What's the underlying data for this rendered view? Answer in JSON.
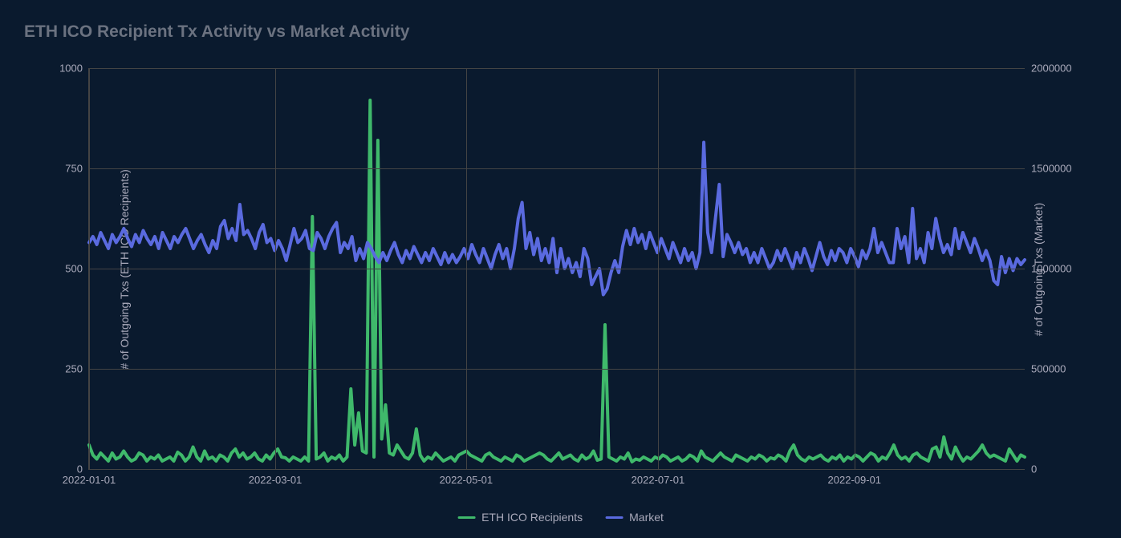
{
  "chart": {
    "type": "line-dual-axis",
    "title": "ETH ICO Recipient Tx Activity vs Market Activity",
    "title_color": "#6b7280",
    "title_fontsize": 21,
    "background_color": "#0a1a2e",
    "grid_color": "#444444",
    "axis_text_color": "#aabbcc",
    "yaxis_left": {
      "label": "# of Outgoing Txs (ETH ICO Recipients)",
      "min": 0,
      "max": 1000,
      "ticks": [
        0,
        250,
        500,
        750,
        1000
      ]
    },
    "yaxis_right": {
      "label": "# of Outgoing Txs (Market)",
      "min": 0,
      "max": 2000000,
      "ticks": [
        0,
        500000,
        1000000,
        1500000,
        2000000
      ]
    },
    "xaxis": {
      "ticks": [
        "2022-01-01",
        "2022-03-01",
        "2022-05-01",
        "2022-07-01",
        "2022-09-01"
      ],
      "tick_positions_pct": [
        0,
        19.9,
        40.3,
        60.8,
        81.8
      ]
    },
    "series": [
      {
        "name": "ETH ICO Recipients",
        "color": "#3fb96b",
        "axis": "left",
        "line_width": 2,
        "values": [
          60,
          35,
          25,
          40,
          30,
          20,
          40,
          25,
          30,
          45,
          30,
          20,
          25,
          40,
          35,
          20,
          30,
          25,
          35,
          20,
          25,
          30,
          20,
          42,
          35,
          20,
          30,
          55,
          30,
          20,
          45,
          25,
          30,
          20,
          35,
          30,
          20,
          40,
          50,
          30,
          40,
          25,
          30,
          40,
          25,
          20,
          35,
          25,
          40,
          50,
          30,
          28,
          20,
          30,
          25,
          20,
          30,
          20,
          630,
          25,
          30,
          40,
          20,
          30,
          25,
          35,
          20,
          30,
          200,
          60,
          140,
          45,
          40,
          920,
          30,
          820,
          75,
          160,
          40,
          35,
          60,
          45,
          30,
          25,
          40,
          100,
          35,
          20,
          30,
          25,
          40,
          30,
          20,
          25,
          30,
          20,
          35,
          40,
          45,
          35,
          30,
          25,
          20,
          35,
          40,
          30,
          25,
          20,
          30,
          25,
          20,
          35,
          30,
          20,
          25,
          30,
          35,
          40,
          35,
          25,
          20,
          30,
          40,
          25,
          30,
          35,
          25,
          20,
          35,
          25,
          30,
          45,
          22,
          25,
          360,
          30,
          25,
          20,
          30,
          25,
          40,
          18,
          25,
          22,
          30,
          25,
          20,
          30,
          25,
          35,
          30,
          20,
          25,
          30,
          20,
          25,
          35,
          30,
          20,
          45,
          30,
          25,
          20,
          30,
          40,
          30,
          25,
          20,
          35,
          30,
          25,
          20,
          30,
          25,
          35,
          30,
          20,
          28,
          25,
          35,
          30,
          20,
          45,
          60,
          35,
          25,
          20,
          30,
          25,
          30,
          35,
          25,
          20,
          30,
          25,
          35,
          20,
          30,
          25,
          35,
          30,
          20,
          30,
          40,
          35,
          20,
          30,
          25,
          40,
          60,
          35,
          25,
          30,
          20,
          35,
          40,
          30,
          25,
          20,
          50,
          55,
          30,
          80,
          40,
          25,
          55,
          35,
          20,
          30,
          25,
          35,
          45,
          60,
          40,
          30,
          35,
          30,
          25,
          20,
          50,
          35,
          20,
          35,
          30
        ]
      },
      {
        "name": "Market",
        "color": "#5a6adf",
        "axis": "right",
        "line_width": 2,
        "values": [
          1130000,
          1160000,
          1120000,
          1180000,
          1140000,
          1100000,
          1170000,
          1130000,
          1160000,
          1200000,
          1150000,
          1110000,
          1170000,
          1130000,
          1190000,
          1150000,
          1120000,
          1160000,
          1100000,
          1180000,
          1140000,
          1100000,
          1160000,
          1130000,
          1170000,
          1200000,
          1150000,
          1100000,
          1140000,
          1170000,
          1120000,
          1080000,
          1140000,
          1100000,
          1210000,
          1240000,
          1150000,
          1200000,
          1140000,
          1320000,
          1170000,
          1190000,
          1150000,
          1100000,
          1180000,
          1220000,
          1130000,
          1150000,
          1090000,
          1140000,
          1100000,
          1040000,
          1120000,
          1200000,
          1130000,
          1150000,
          1190000,
          1100000,
          1090000,
          1180000,
          1150000,
          1100000,
          1160000,
          1200000,
          1230000,
          1080000,
          1130000,
          1100000,
          1160000,
          1040000,
          1100000,
          1050000,
          1130000,
          1100000,
          1060000,
          1030000,
          1080000,
          1040000,
          1090000,
          1130000,
          1070000,
          1030000,
          1090000,
          1050000,
          1110000,
          1070000,
          1030000,
          1080000,
          1040000,
          1100000,
          1060000,
          1020000,
          1080000,
          1030000,
          1070000,
          1030000,
          1060000,
          1100000,
          1050000,
          1120000,
          1070000,
          1030000,
          1100000,
          1050000,
          1000000,
          1070000,
          1120000,
          1050000,
          1100000,
          1000000,
          1100000,
          1250000,
          1330000,
          1100000,
          1180000,
          1070000,
          1150000,
          1040000,
          1100000,
          1030000,
          1150000,
          980000,
          1100000,
          1000000,
          1050000,
          980000,
          1030000,
          960000,
          1100000,
          1050000,
          920000,
          960000,
          1000000,
          870000,
          900000,
          980000,
          1040000,
          980000,
          1110000,
          1190000,
          1120000,
          1200000,
          1130000,
          1170000,
          1100000,
          1180000,
          1130000,
          1080000,
          1150000,
          1100000,
          1050000,
          1130000,
          1080000,
          1030000,
          1100000,
          1040000,
          1080000,
          1000000,
          1080000,
          1630000,
          1180000,
          1080000,
          1250000,
          1420000,
          1060000,
          1170000,
          1130000,
          1080000,
          1130000,
          1070000,
          1100000,
          1030000,
          1080000,
          1030000,
          1100000,
          1050000,
          1000000,
          1030000,
          1090000,
          1040000,
          1100000,
          1050000,
          1000000,
          1080000,
          1030000,
          1100000,
          1050000,
          990000,
          1060000,
          1130000,
          1060000,
          1020000,
          1090000,
          1040000,
          1100000,
          1080000,
          1030000,
          1100000,
          1060000,
          1010000,
          1090000,
          1050000,
          1100000,
          1200000,
          1080000,
          1130000,
          1080000,
          1030000,
          1030000,
          1200000,
          1100000,
          1160000,
          1030000,
          1300000,
          1050000,
          1100000,
          1030000,
          1180000,
          1100000,
          1250000,
          1150000,
          1080000,
          1120000,
          1070000,
          1200000,
          1100000,
          1180000,
          1130000,
          1080000,
          1150000,
          1100000,
          1040000,
          1090000,
          1040000,
          940000,
          920000,
          1060000,
          980000,
          1050000,
          990000,
          1050000,
          1020000,
          1044000
        ]
      }
    ],
    "legend": {
      "items": [
        {
          "label": "ETH ICO Recipients",
          "color": "#3fb96b"
        },
        {
          "label": "Market",
          "color": "#5a6adf"
        }
      ]
    }
  }
}
